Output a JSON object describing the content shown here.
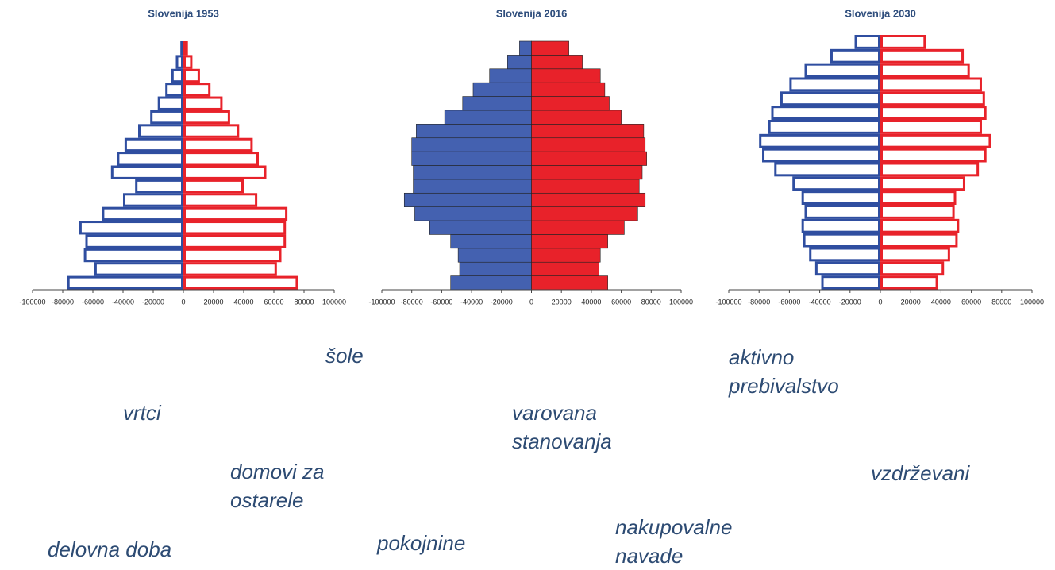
{
  "chart_data": [
    {
      "type": "pyramid",
      "title": "Slovenija 1953",
      "style": "outline",
      "xlim": [
        -100000,
        100000
      ],
      "xticks": [
        -100000,
        -80000,
        -60000,
        -40000,
        -20000,
        0,
        20000,
        40000,
        60000,
        80000,
        100000
      ],
      "series": [
        {
          "color": "#2f4ea0",
          "values": [
            -77000,
            -59000,
            -66000,
            -65000,
            -69000,
            -54000,
            -40000,
            -32000,
            -48000,
            -44000,
            -39000,
            -30000,
            -22000,
            -17000,
            -12000,
            -8000,
            -5000,
            -2000
          ]
        },
        {
          "color": "#e8222a",
          "values": [
            76000,
            62000,
            65000,
            68000,
            68000,
            69000,
            49000,
            40000,
            55000,
            50000,
            46000,
            37000,
            31000,
            26000,
            18000,
            11000,
            6000,
            3000
          ]
        }
      ]
    },
    {
      "type": "pyramid",
      "title": "Slovenija 2016",
      "style": "filled",
      "xlim": [
        -100000,
        100000
      ],
      "xticks": [
        -100000,
        -80000,
        -60000,
        -40000,
        -20000,
        0,
        20000,
        40000,
        60000,
        80000,
        100000
      ],
      "series": [
        {
          "color": "#4461b0",
          "values": [
            -54000,
            -48000,
            -49000,
            -54000,
            -68000,
            -78000,
            -85000,
            -79000,
            -79000,
            -80000,
            -80000,
            -77000,
            -58000,
            -46000,
            -39000,
            -28000,
            -16000,
            -8000
          ]
        },
        {
          "color": "#e8222a",
          "values": [
            51000,
            45000,
            46000,
            51000,
            62000,
            71000,
            76000,
            72000,
            74000,
            77000,
            76000,
            75000,
            60000,
            52000,
            49000,
            46000,
            34000,
            25000
          ]
        }
      ]
    },
    {
      "type": "pyramid",
      "title": "Slovenija 2030",
      "style": "outline",
      "xlim": [
        -100000,
        100000
      ],
      "xticks": [
        -100000,
        -80000,
        -60000,
        -40000,
        -20000,
        0,
        20000,
        40000,
        60000,
        80000,
        100000
      ],
      "series": [
        {
          "color": "#2f4ea0",
          "values": [
            -39000,
            -43000,
            -47000,
            -51000,
            -52000,
            -50000,
            -52000,
            -58000,
            -70000,
            -78000,
            -80000,
            -74000,
            -72000,
            -66000,
            -60000,
            -50000,
            -33000,
            -17000
          ]
        },
        {
          "color": "#e8222a",
          "values": [
            38000,
            42000,
            46000,
            51000,
            52000,
            49000,
            50000,
            56000,
            65000,
            70000,
            73000,
            67000,
            70000,
            69000,
            67000,
            59000,
            55000,
            30000
          ]
        }
      ]
    }
  ],
  "words": [
    "šole",
    "aktivno prebivalstvo",
    "vrtci",
    "varovana stanovanja",
    "domovi za ostarele",
    "vzdrževani",
    "nakupovalne navade",
    "pokojnine",
    "delovna doba"
  ]
}
